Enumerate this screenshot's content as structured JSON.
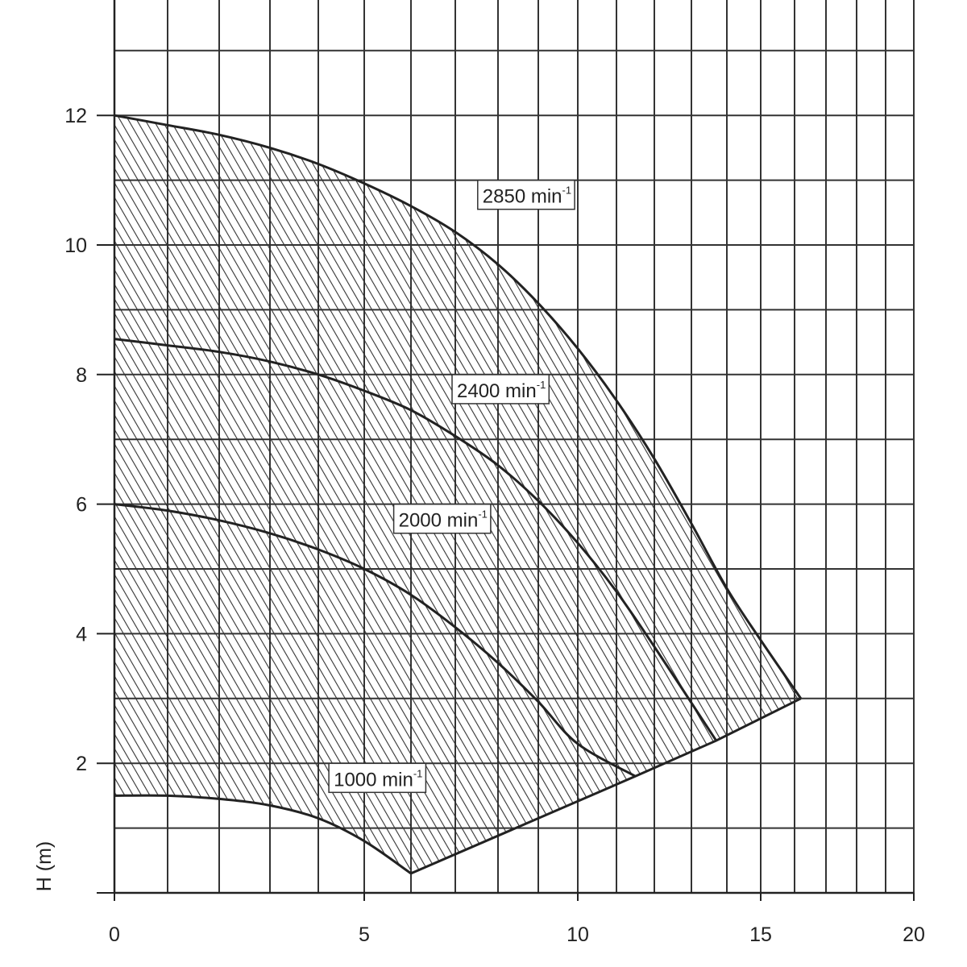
{
  "chart_data": {
    "type": "line",
    "title": "",
    "xlabel": "",
    "ylabel": "H (m)",
    "xlim": [
      0,
      20
    ],
    "ylim": [
      0,
      13
    ],
    "grid": true,
    "x_ticks": [
      {
        "value": 0,
        "label": "0"
      },
      {
        "value": 5,
        "label": "5"
      },
      {
        "value": 10,
        "label": "10"
      },
      {
        "value": 15,
        "label": "15"
      },
      {
        "value": 20,
        "label": "20"
      }
    ],
    "y_ticks": [
      {
        "value": 2,
        "label": "2"
      },
      {
        "value": 4,
        "label": "4"
      },
      {
        "value": 6,
        "label": "6"
      },
      {
        "value": 8,
        "label": "8"
      },
      {
        "value": 10,
        "label": "10"
      },
      {
        "value": 12,
        "label": "12"
      }
    ],
    "series": [
      {
        "name": "2850 min-1",
        "label_base": "2850 min",
        "label_sup": "-1",
        "x": [
          0,
          1,
          2,
          3,
          4,
          5,
          6,
          7,
          8,
          9,
          10,
          11,
          12,
          13,
          14,
          15,
          16.2
        ],
        "y": [
          12.0,
          11.85,
          11.7,
          11.5,
          11.25,
          10.95,
          10.6,
          10.2,
          9.7,
          9.1,
          8.4,
          7.6,
          6.7,
          5.7,
          4.7,
          3.9,
          3.0
        ]
      },
      {
        "name": "2400 min-1",
        "label_base": "2400 min",
        "label_sup": "-1",
        "x": [
          0,
          1,
          2,
          3,
          4,
          5,
          6,
          7,
          8,
          9,
          10,
          11,
          12,
          13.7
        ],
        "y": [
          8.55,
          8.45,
          8.35,
          8.2,
          8.0,
          7.75,
          7.45,
          7.05,
          6.6,
          6.05,
          5.4,
          4.65,
          3.8,
          2.35
        ]
      },
      {
        "name": "2000 min-1",
        "label_base": "2000 min",
        "label_sup": "-1",
        "x": [
          0,
          1,
          2,
          3,
          4,
          5,
          6,
          7,
          8,
          9,
          10,
          11.5
        ],
        "y": [
          6.0,
          5.9,
          5.75,
          5.55,
          5.3,
          5.0,
          4.6,
          4.1,
          3.55,
          2.95,
          2.3,
          1.8
        ]
      },
      {
        "name": "1000 min-1",
        "label_base": "1000 min",
        "label_sup": "-1",
        "x": [
          0,
          1,
          2,
          3,
          4,
          5,
          6
        ],
        "y": [
          1.5,
          1.5,
          1.45,
          1.35,
          1.15,
          0.8,
          0.3
        ]
      }
    ],
    "lower_boundary": {
      "x": [
        6,
        11.5,
        13.7,
        16.2
      ],
      "y": [
        0.3,
        1.8,
        2.35,
        3.0
      ]
    },
    "label_positions": [
      {
        "series": 0,
        "x": 7.6,
        "y": 10.7
      },
      {
        "series": 1,
        "x": 7.0,
        "y": 7.7
      },
      {
        "series": 2,
        "x": 5.7,
        "y": 5.7
      },
      {
        "series": 3,
        "x": 4.3,
        "y": 1.7
      }
    ]
  }
}
